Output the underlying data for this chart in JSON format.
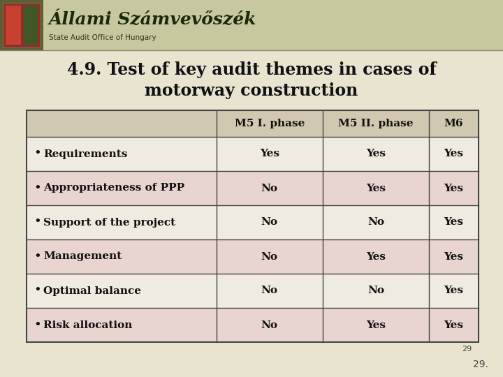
{
  "title_line1": "4.9. Test of key audit themes in cases of",
  "title_line2": "motorway construction",
  "slide_bg": "#e8e4d0",
  "logo_bar_bg": "#c8c8a0",
  "logo_bar_left_bg": "#5a6030",
  "table_headers": [
    "M5 I. phase",
    "M5 II. phase",
    "M6"
  ],
  "rows": [
    {
      "label": "Requirements",
      "values": [
        "Yes",
        "Yes",
        "Yes"
      ]
    },
    {
      "label": "Appropriateness of PPP",
      "values": [
        "No",
        "Yes",
        "Yes"
      ]
    },
    {
      "label": "Support of the project",
      "values": [
        "No",
        "No",
        "Yes"
      ]
    },
    {
      "label": "Management",
      "values": [
        "No",
        "Yes",
        "Yes"
      ]
    },
    {
      "label": "Optimal balance",
      "values": [
        "No",
        "No",
        "Yes"
      ]
    },
    {
      "label": "Risk allocation",
      "values": [
        "No",
        "Yes",
        "Yes"
      ]
    }
  ],
  "title_fontsize": 17,
  "table_fontsize": 11,
  "header_fontsize": 11,
  "page_number": "29",
  "row_colors": [
    "#f0ebe0",
    "#e8d5d0",
    "#f0ebe0",
    "#e8d5d0",
    "#f0ebe0",
    "#e8d5d0"
  ],
  "table_header_bg": "#d0c8b0",
  "border_color": "#444444",
  "text_color": "#111111"
}
